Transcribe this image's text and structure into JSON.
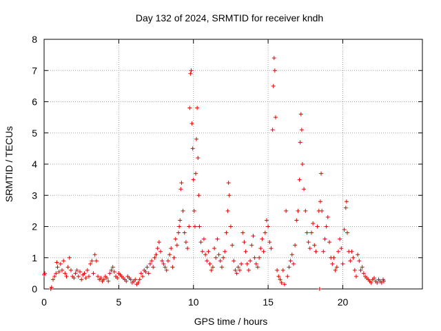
{
  "chart_data": {
    "type": "scatter",
    "title": "Day 132 of 2024, SRMTID for receiver kndh",
    "xlabel": "GPS time / hours",
    "ylabel": "SRMTID / TECUs",
    "xlim": [
      0,
      25.33
    ],
    "ylim": [
      0,
      8
    ],
    "xticks": [
      0,
      5,
      10,
      15,
      20
    ],
    "yticks": [
      0,
      1,
      2,
      3,
      4,
      5,
      6,
      7,
      8
    ],
    "grid": true,
    "marker": "+",
    "colors": {
      "series": "#e00000",
      "grid": "#a0a0a0",
      "axis": "#000000"
    },
    "series": [
      {
        "name": "SRMTID",
        "points": [
          [
            0.0,
            0.45
          ],
          [
            0.05,
            0.5
          ],
          [
            0.45,
            0.0
          ],
          [
            0.5,
            0.05
          ],
          [
            0.6,
            0.3
          ],
          [
            0.7,
            0.4
          ],
          [
            0.8,
            0.5
          ],
          [
            0.85,
            0.85
          ],
          [
            0.9,
            0.7
          ],
          [
            1.0,
            0.55
          ],
          [
            1.1,
            0.8
          ],
          [
            1.2,
            0.6
          ],
          [
            1.3,
            0.9
          ],
          [
            1.4,
            0.5
          ],
          [
            1.5,
            0.4
          ],
          [
            1.6,
            0.7
          ],
          [
            1.7,
            1.0
          ],
          [
            1.8,
            0.6
          ],
          [
            1.9,
            0.4
          ],
          [
            2.0,
            0.35
          ],
          [
            2.1,
            0.5
          ],
          [
            2.2,
            0.6
          ],
          [
            2.3,
            0.4
          ],
          [
            2.4,
            0.55
          ],
          [
            2.5,
            0.3
          ],
          [
            2.6,
            0.45
          ],
          [
            2.7,
            0.5
          ],
          [
            2.8,
            0.35
          ],
          [
            2.9,
            0.6
          ],
          [
            3.0,
            0.4
          ],
          [
            3.1,
            0.8
          ],
          [
            3.2,
            0.9
          ],
          [
            3.3,
            0.5
          ],
          [
            3.4,
            1.1
          ],
          [
            3.5,
            0.9
          ],
          [
            3.6,
            0.4
          ],
          [
            3.7,
            0.3
          ],
          [
            3.8,
            0.35
          ],
          [
            3.9,
            0.25
          ],
          [
            4.0,
            0.3
          ],
          [
            4.1,
            0.4
          ],
          [
            4.2,
            0.35
          ],
          [
            4.3,
            0.25
          ],
          [
            4.4,
            0.5
          ],
          [
            4.5,
            0.6
          ],
          [
            4.6,
            0.7
          ],
          [
            4.7,
            0.55
          ],
          [
            4.8,
            0.4
          ],
          [
            4.9,
            0.35
          ],
          [
            5.0,
            0.5
          ],
          [
            5.1,
            0.45
          ],
          [
            5.2,
            0.4
          ],
          [
            5.3,
            0.35
          ],
          [
            5.4,
            0.3
          ],
          [
            5.5,
            0.25
          ],
          [
            5.6,
            0.4
          ],
          [
            5.7,
            0.35
          ],
          [
            5.8,
            0.3
          ],
          [
            5.9,
            0.2
          ],
          [
            6.0,
            0.25
          ],
          [
            6.1,
            0.3
          ],
          [
            6.2,
            0.15
          ],
          [
            6.3,
            0.2
          ],
          [
            6.4,
            0.3
          ],
          [
            6.5,
            0.5
          ],
          [
            6.6,
            0.4
          ],
          [
            6.7,
            0.6
          ],
          [
            6.8,
            0.55
          ],
          [
            6.9,
            0.7
          ],
          [
            7.0,
            0.5
          ],
          [
            7.1,
            0.8
          ],
          [
            7.2,
            0.9
          ],
          [
            7.3,
            0.7
          ],
          [
            7.4,
            1.0
          ],
          [
            7.5,
            1.1
          ],
          [
            7.6,
            1.3
          ],
          [
            7.7,
            1.5
          ],
          [
            7.8,
            1.2
          ],
          [
            7.9,
            0.9
          ],
          [
            8.0,
            0.8
          ],
          [
            8.1,
            0.7
          ],
          [
            8.2,
            0.6
          ],
          [
            8.3,
            0.9
          ],
          [
            8.4,
            1.1
          ],
          [
            8.5,
            1.3
          ],
          [
            8.6,
            0.7
          ],
          [
            8.7,
            1.0
          ],
          [
            8.8,
            1.6
          ],
          [
            8.9,
            1.4
          ],
          [
            9.0,
            1.8
          ],
          [
            9.05,
            2.0
          ],
          [
            9.1,
            2.2
          ],
          [
            9.15,
            3.2
          ],
          [
            9.2,
            3.4
          ],
          [
            9.3,
            2.5
          ],
          [
            9.4,
            1.8
          ],
          [
            9.5,
            1.5
          ],
          [
            9.6,
            1.3
          ],
          [
            9.7,
            2.0
          ],
          [
            9.75,
            5.8
          ],
          [
            9.8,
            6.9
          ],
          [
            9.85,
            7.0
          ],
          [
            9.9,
            5.3
          ],
          [
            9.95,
            4.5
          ],
          [
            10.0,
            3.5
          ],
          [
            10.05,
            2.5
          ],
          [
            10.1,
            2.0
          ],
          [
            10.15,
            3.7
          ],
          [
            10.2,
            4.8
          ],
          [
            10.25,
            5.8
          ],
          [
            10.3,
            4.2
          ],
          [
            10.35,
            3.0
          ],
          [
            10.4,
            2.0
          ],
          [
            10.5,
            1.5
          ],
          [
            10.6,
            1.2
          ],
          [
            10.7,
            1.6
          ],
          [
            10.8,
            1.1
          ],
          [
            10.9,
            0.9
          ],
          [
            11.0,
            1.2
          ],
          [
            11.1,
            0.8
          ],
          [
            11.2,
            0.6
          ],
          [
            11.3,
            0.7
          ],
          [
            11.4,
            1.3
          ],
          [
            11.5,
            1.0
          ],
          [
            11.6,
            1.6
          ],
          [
            11.7,
            1.1
          ],
          [
            11.8,
            0.9
          ],
          [
            11.9,
            0.7
          ],
          [
            12.0,
            1.0
          ],
          [
            12.1,
            1.2
          ],
          [
            12.2,
            1.8
          ],
          [
            12.3,
            2.5
          ],
          [
            12.35,
            3.4
          ],
          [
            12.4,
            3.0
          ],
          [
            12.5,
            2.0
          ],
          [
            12.6,
            1.4
          ],
          [
            12.7,
            0.9
          ],
          [
            12.8,
            0.6
          ],
          [
            12.9,
            0.5
          ],
          [
            13.0,
            0.7
          ],
          [
            13.1,
            0.6
          ],
          [
            13.2,
            0.8
          ],
          [
            13.3,
            1.8
          ],
          [
            13.4,
            1.5
          ],
          [
            13.5,
            1.2
          ],
          [
            13.6,
            0.8
          ],
          [
            13.7,
            0.6
          ],
          [
            13.8,
            0.9
          ],
          [
            13.9,
            1.4
          ],
          [
            14.0,
            1.7
          ],
          [
            14.1,
            1.0
          ],
          [
            14.2,
            0.8
          ],
          [
            14.3,
            0.7
          ],
          [
            14.4,
            1.0
          ],
          [
            14.5,
            1.3
          ],
          [
            14.6,
            1.6
          ],
          [
            14.7,
            1.2
          ],
          [
            14.8,
            1.8
          ],
          [
            14.9,
            2.2
          ],
          [
            15.0,
            2.0
          ],
          [
            15.1,
            1.5
          ],
          [
            15.2,
            1.3
          ],
          [
            15.3,
            5.1
          ],
          [
            15.35,
            6.5
          ],
          [
            15.4,
            7.4
          ],
          [
            15.45,
            7.0
          ],
          [
            15.5,
            5.5
          ],
          [
            15.6,
            0.6
          ],
          [
            15.7,
            0.4
          ],
          [
            15.8,
            0.3
          ],
          [
            15.9,
            0.2
          ],
          [
            16.0,
            0.6
          ],
          [
            16.1,
            0.15
          ],
          [
            16.2,
            2.5
          ],
          [
            16.3,
            0.4
          ],
          [
            16.4,
            0.7
          ],
          [
            16.5,
            0.9
          ],
          [
            16.6,
            1.1
          ],
          [
            16.7,
            0.8
          ],
          [
            16.8,
            1.4
          ],
          [
            16.9,
            2.2
          ],
          [
            17.0,
            2.5
          ],
          [
            17.1,
            3.5
          ],
          [
            17.15,
            4.7
          ],
          [
            17.2,
            5.6
          ],
          [
            17.25,
            5.1
          ],
          [
            17.3,
            4.0
          ],
          [
            17.4,
            3.2
          ],
          [
            17.5,
            2.5
          ],
          [
            17.6,
            1.8
          ],
          [
            17.7,
            1.5
          ],
          [
            17.8,
            1.3
          ],
          [
            17.9,
            1.8
          ],
          [
            18.0,
            2.1
          ],
          [
            18.1,
            1.4
          ],
          [
            18.2,
            1.2
          ],
          [
            18.3,
            2.0
          ],
          [
            18.4,
            2.5
          ],
          [
            18.5,
            2.8
          ],
          [
            18.55,
            3.7
          ],
          [
            18.6,
            2.5
          ],
          [
            18.7,
            1.2
          ],
          [
            18.8,
            1.6
          ],
          [
            18.9,
            2.0
          ],
          [
            19.0,
            2.3
          ],
          [
            19.1,
            1.5
          ],
          [
            19.2,
            1.0
          ],
          [
            19.3,
            0.8
          ],
          [
            19.4,
            1.0
          ],
          [
            19.5,
            0.6
          ],
          [
            19.6,
            0.7
          ],
          [
            19.7,
            1.2
          ],
          [
            19.8,
            1.6
          ],
          [
            19.9,
            1.3
          ],
          [
            20.0,
            0.8
          ],
          [
            20.1,
            1.9
          ],
          [
            20.2,
            2.6
          ],
          [
            20.25,
            2.8
          ],
          [
            20.3,
            1.8
          ],
          [
            20.4,
            1.2
          ],
          [
            20.5,
            0.9
          ],
          [
            20.6,
            1.2
          ],
          [
            20.7,
            1.0
          ],
          [
            20.8,
            0.6
          ],
          [
            20.9,
            0.4
          ],
          [
            21.0,
            1.1
          ],
          [
            21.1,
            0.9
          ],
          [
            21.2,
            0.6
          ],
          [
            21.3,
            0.7
          ],
          [
            21.4,
            0.5
          ],
          [
            21.5,
            0.4
          ],
          [
            21.6,
            0.35
          ],
          [
            21.7,
            0.3
          ],
          [
            21.8,
            0.25
          ],
          [
            21.9,
            0.2
          ],
          [
            22.0,
            0.3
          ],
          [
            22.1,
            0.35
          ],
          [
            22.2,
            0.25
          ],
          [
            22.3,
            0.2
          ],
          [
            22.4,
            0.3
          ],
          [
            22.5,
            0.25
          ],
          [
            22.6,
            0.2
          ],
          [
            22.7,
            0.3
          ],
          [
            22.75,
            0.25
          ],
          [
            18.45,
            0.0
          ]
        ]
      }
    ]
  }
}
